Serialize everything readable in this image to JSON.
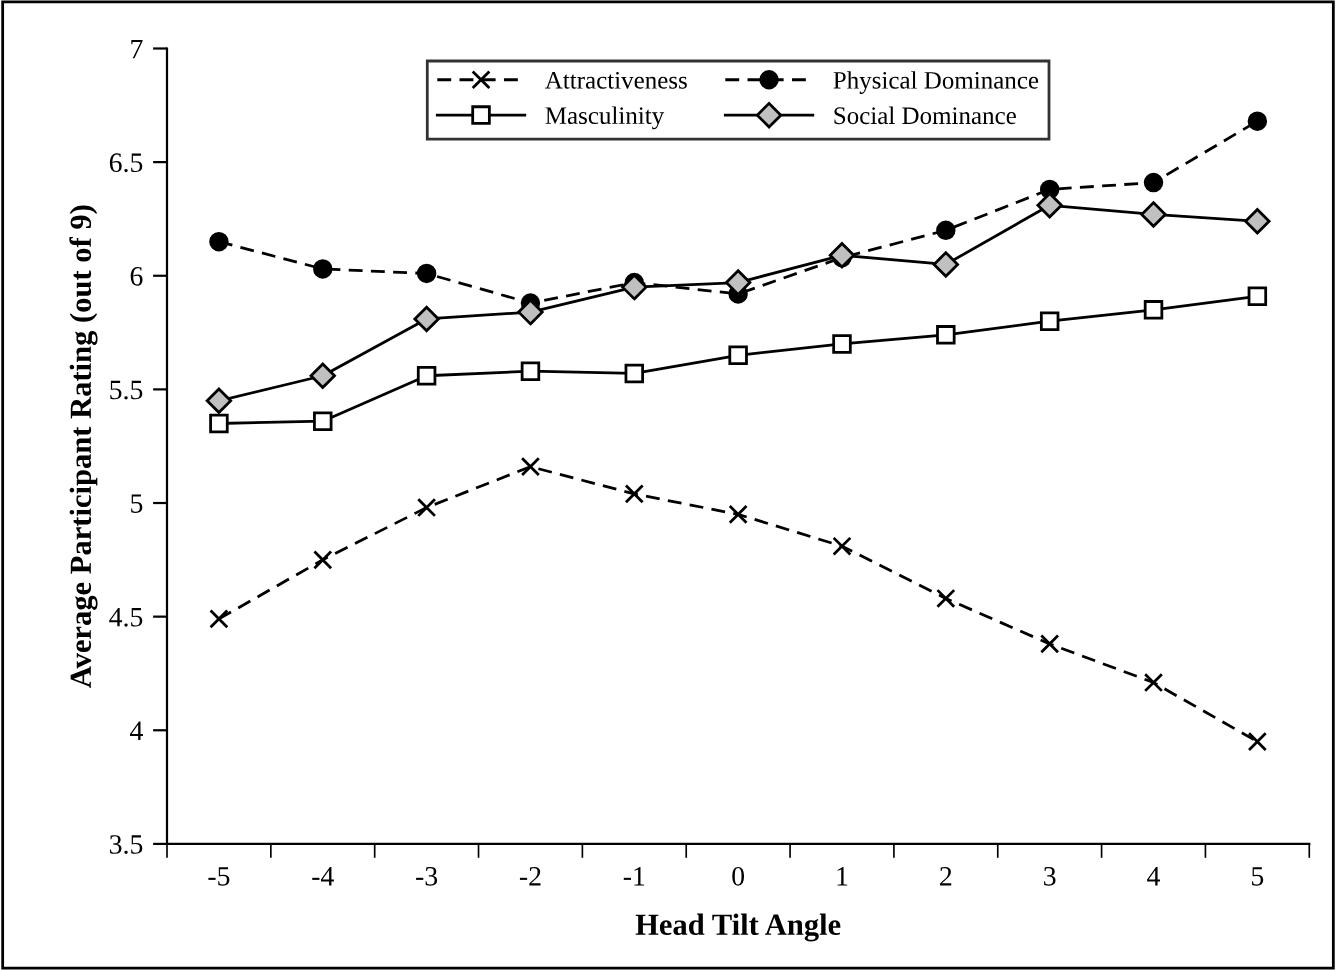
{
  "chart_data": {
    "type": "line",
    "xlabel": "Head Tilt Angle",
    "ylabel": "Average Participant Rating (out of 9)",
    "categories": [
      "-5",
      "-4",
      "-3",
      "-2",
      "-1",
      "0",
      "1",
      "2",
      "3",
      "4",
      "5"
    ],
    "series": [
      {
        "name": "Attractiveness",
        "color": "#000000",
        "marker": "cross",
        "line_style": "dashed",
        "values": [
          4.49,
          4.75,
          4.98,
          5.16,
          5.04,
          4.95,
          4.81,
          4.58,
          4.38,
          4.21,
          3.95
        ]
      },
      {
        "name": "Masculinity",
        "color": "#000000",
        "marker": "square",
        "line_style": "solid",
        "values": [
          5.35,
          5.36,
          5.56,
          5.58,
          5.57,
          5.65,
          5.7,
          5.74,
          5.8,
          5.85,
          5.91
        ]
      },
      {
        "name": "Physical Dominance",
        "color": "#000000",
        "marker": "circle",
        "line_style": "dashed",
        "values": [
          6.15,
          6.03,
          6.01,
          5.88,
          5.97,
          5.92,
          6.08,
          6.2,
          6.38,
          6.41,
          6.68
        ]
      },
      {
        "name": "Social Dominance",
        "color": "#000000",
        "marker": "diamond",
        "line_style": "solid",
        "values": [
          5.45,
          5.56,
          5.81,
          5.84,
          5.95,
          5.97,
          6.09,
          6.05,
          6.31,
          6.27,
          6.24
        ]
      }
    ],
    "ylim": [
      3.5,
      7
    ],
    "yticks": [
      3.5,
      4,
      4.5,
      5,
      5.5,
      6,
      6.5,
      7
    ],
    "grid": false,
    "legend": "top"
  }
}
